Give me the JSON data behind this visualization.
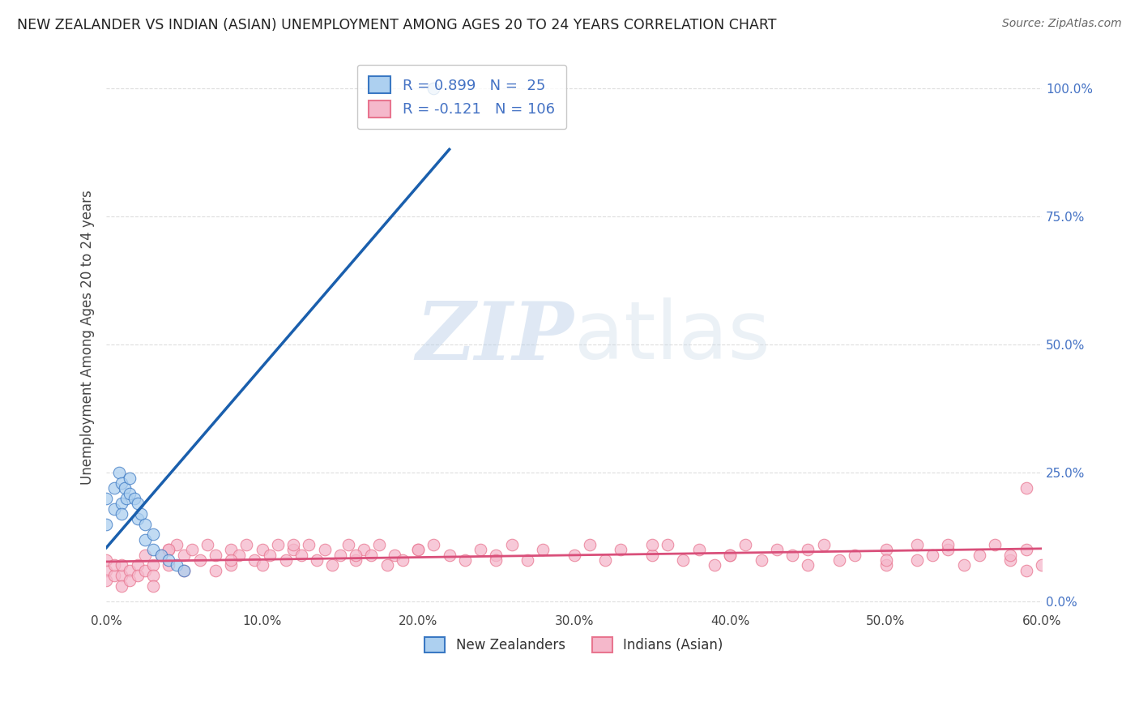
{
  "title": "NEW ZEALANDER VS INDIAN (ASIAN) UNEMPLOYMENT AMONG AGES 20 TO 24 YEARS CORRELATION CHART",
  "source": "Source: ZipAtlas.com",
  "ylabel": "Unemployment Among Ages 20 to 24 years",
  "xlim": [
    0.0,
    0.6
  ],
  "ylim": [
    -0.02,
    1.05
  ],
  "xticks": [
    0.0,
    0.1,
    0.2,
    0.3,
    0.4,
    0.5,
    0.6
  ],
  "xticklabels": [
    "0.0%",
    "10.0%",
    "20.0%",
    "30.0%",
    "40.0%",
    "50.0%",
    "60.0%"
  ],
  "yticks": [
    0.0,
    0.25,
    0.5,
    0.75,
    1.0
  ],
  "yticklabels": [
    "0.0%",
    "25.0%",
    "50.0%",
    "75.0%",
    "100.0%"
  ],
  "blue_R": 0.899,
  "blue_N": 25,
  "pink_R": -0.121,
  "pink_N": 106,
  "blue_color": "#ADD0F0",
  "pink_color": "#F5B8CB",
  "blue_edge_color": "#3A78C3",
  "pink_edge_color": "#E8758F",
  "blue_line_color": "#1A5FAD",
  "pink_line_color": "#D94F7A",
  "legend_label_blue": "New Zealanders",
  "legend_label_pink": "Indians (Asian)",
  "watermark_zip": "ZIP",
  "watermark_atlas": "atlas",
  "background_color": "#FFFFFF",
  "grid_color": "#DDDDDD",
  "title_color": "#222222",
  "source_color": "#666666",
  "ylabel_color": "#444444",
  "xtick_color": "#444444",
  "ytick_color": "#4472C4",
  "blue_scatter_x": [
    0.0,
    0.0,
    0.005,
    0.005,
    0.008,
    0.01,
    0.01,
    0.01,
    0.012,
    0.013,
    0.015,
    0.015,
    0.018,
    0.02,
    0.02,
    0.022,
    0.025,
    0.025,
    0.03,
    0.03,
    0.035,
    0.04,
    0.045,
    0.05,
    0.21
  ],
  "blue_scatter_y": [
    0.2,
    0.15,
    0.22,
    0.18,
    0.25,
    0.23,
    0.19,
    0.17,
    0.22,
    0.2,
    0.24,
    0.21,
    0.2,
    0.19,
    0.16,
    0.17,
    0.15,
    0.12,
    0.13,
    0.1,
    0.09,
    0.08,
    0.07,
    0.06,
    1.0
  ],
  "blue_line_x": [
    0.0,
    0.22
  ],
  "blue_line_y_start": 0.0,
  "blue_line_slope": 4.55,
  "pink_line_x": [
    0.0,
    0.6
  ],
  "pink_line_y_start": 0.055,
  "pink_line_slope": -0.025,
  "pink_scatter_x": [
    0.0,
    0.0,
    0.0,
    0.005,
    0.005,
    0.01,
    0.01,
    0.01,
    0.015,
    0.015,
    0.02,
    0.02,
    0.025,
    0.025,
    0.03,
    0.03,
    0.03,
    0.035,
    0.04,
    0.04,
    0.045,
    0.05,
    0.05,
    0.055,
    0.06,
    0.065,
    0.07,
    0.07,
    0.08,
    0.08,
    0.085,
    0.09,
    0.095,
    0.1,
    0.1,
    0.105,
    0.11,
    0.115,
    0.12,
    0.125,
    0.13,
    0.135,
    0.14,
    0.145,
    0.15,
    0.155,
    0.16,
    0.165,
    0.17,
    0.175,
    0.18,
    0.185,
    0.19,
    0.2,
    0.21,
    0.22,
    0.23,
    0.24,
    0.25,
    0.26,
    0.27,
    0.28,
    0.3,
    0.31,
    0.32,
    0.33,
    0.35,
    0.36,
    0.37,
    0.38,
    0.39,
    0.4,
    0.41,
    0.42,
    0.43,
    0.44,
    0.45,
    0.46,
    0.47,
    0.48,
    0.5,
    0.5,
    0.52,
    0.52,
    0.53,
    0.54,
    0.55,
    0.56,
    0.57,
    0.58,
    0.59,
    0.59,
    0.6,
    0.58,
    0.54,
    0.5,
    0.45,
    0.4,
    0.35,
    0.25,
    0.2,
    0.16,
    0.12,
    0.08,
    0.04,
    0.59
  ],
  "pink_scatter_y": [
    0.06,
    0.04,
    0.08,
    0.05,
    0.07,
    0.05,
    0.03,
    0.07,
    0.06,
    0.04,
    0.07,
    0.05,
    0.09,
    0.06,
    0.07,
    0.05,
    0.03,
    0.09,
    0.1,
    0.07,
    0.11,
    0.09,
    0.06,
    0.1,
    0.08,
    0.11,
    0.09,
    0.06,
    0.1,
    0.07,
    0.09,
    0.11,
    0.08,
    0.1,
    0.07,
    0.09,
    0.11,
    0.08,
    0.1,
    0.09,
    0.11,
    0.08,
    0.1,
    0.07,
    0.09,
    0.11,
    0.08,
    0.1,
    0.09,
    0.11,
    0.07,
    0.09,
    0.08,
    0.1,
    0.11,
    0.09,
    0.08,
    0.1,
    0.09,
    0.11,
    0.08,
    0.1,
    0.09,
    0.11,
    0.08,
    0.1,
    0.09,
    0.11,
    0.08,
    0.1,
    0.07,
    0.09,
    0.11,
    0.08,
    0.1,
    0.09,
    0.07,
    0.11,
    0.08,
    0.09,
    0.1,
    0.07,
    0.11,
    0.08,
    0.09,
    0.1,
    0.07,
    0.09,
    0.11,
    0.08,
    0.06,
    0.1,
    0.07,
    0.09,
    0.11,
    0.08,
    0.1,
    0.09,
    0.11,
    0.08,
    0.1,
    0.09,
    0.11,
    0.08,
    0.1,
    0.22
  ]
}
